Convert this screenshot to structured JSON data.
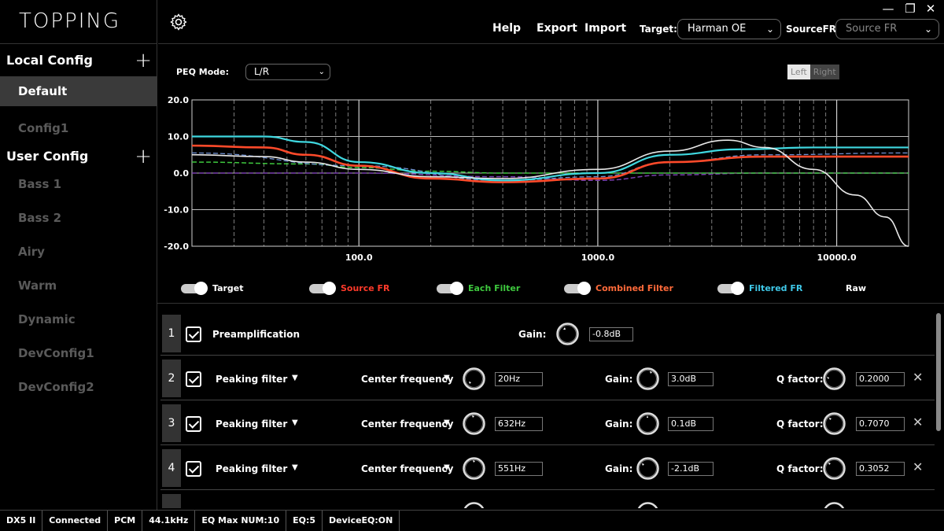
{
  "app": {
    "logo": "TOPPING"
  },
  "topbar": {
    "menu": [
      "Help",
      "Export",
      "Import"
    ],
    "target_label": "Target:",
    "target_value": "Harman OE",
    "sourcefr_label": "SourceFR:",
    "sourcefr_placeholder": "Source FR",
    "win_minimize": "—",
    "win_restore": "❐",
    "win_close": "✕"
  },
  "sidebar": {
    "local_config": "Local Config",
    "local_items": [
      "Default",
      "Config1"
    ],
    "user_config": "User Config",
    "user_items": [
      "Bass 1",
      "Bass 2",
      "Airy",
      "Warm",
      "Dynamic",
      "DevConfig1",
      "DevConfig2"
    ],
    "plus": "+"
  },
  "peq": {
    "mode_label": "PEQ Mode:",
    "mode_value": "L/R",
    "left": "Left",
    "right": "Right"
  },
  "chart_data": {
    "type": "line",
    "xscale": "log",
    "xlim": [
      20,
      20000
    ],
    "ylim": [
      -20,
      20
    ],
    "grid": true,
    "y_ticks": [
      "20.0",
      "10.0",
      "0.0",
      "-10.0",
      "-20.0"
    ],
    "x_ticks": [
      "100.0",
      "1000.0",
      "10000.0"
    ],
    "series": [
      {
        "name": "Target",
        "color": "#e8e8e8",
        "x": [
          20,
          40,
          60,
          100,
          200,
          400,
          1000,
          2000,
          3500,
          5000,
          8000,
          12000,
          16000,
          20000
        ],
        "y": [
          5,
          4.5,
          3,
          1,
          -1,
          -1.5,
          1,
          6,
          9,
          7,
          1,
          -6,
          -12,
          -20
        ]
      },
      {
        "name": "Source FR",
        "color": "#ff4a2a",
        "x": [
          20,
          40,
          60,
          100,
          200,
          400,
          1000,
          2000,
          5000,
          10000,
          20000
        ],
        "y": [
          7.5,
          7,
          5,
          2,
          -1.5,
          -2.5,
          -1.5,
          3,
          4.5,
          4.5,
          4.5
        ]
      },
      {
        "name": "Each Filter",
        "color": "#3ec83e",
        "x": [
          20,
          60,
          100,
          200,
          400,
          1000,
          20000
        ],
        "y": [
          3,
          2.5,
          1.5,
          0.5,
          0,
          0,
          0
        ]
      },
      {
        "name": "Combined Filter",
        "color": "#7a3fb0",
        "x": [
          20,
          100,
          400,
          1000,
          2000,
          5000,
          20000
        ],
        "y": [
          0,
          0,
          -1,
          -2,
          -0.5,
          0,
          0
        ]
      },
      {
        "name": "Filtered FR",
        "color": "#3fd8e0",
        "x": [
          20,
          40,
          60,
          100,
          200,
          400,
          1000,
          2000,
          4000,
          8000,
          20000
        ],
        "y": [
          10,
          10,
          8.5,
          3,
          0,
          -2,
          0,
          5,
          6.5,
          7,
          7
        ]
      },
      {
        "name": "Raw",
        "color": "#6d8fd0",
        "x": [
          20,
          100,
          400,
          1000,
          2000,
          5000,
          20000
        ],
        "y": [
          5.5,
          2,
          -2,
          -1,
          3,
          5,
          5.5
        ]
      }
    ]
  },
  "legend": [
    {
      "label": "Target",
      "color": "#ffffff"
    },
    {
      "label": "Source FR",
      "color": "#ff3a2a"
    },
    {
      "label": "Each Filter",
      "color": "#3ec83e"
    },
    {
      "label": "Combined Filter",
      "color": "#ff6a3a"
    },
    {
      "label": "Filtered FR",
      "color": "#3fc8e8"
    },
    {
      "label": "Raw",
      "color": "#ffffff"
    }
  ],
  "preamp": {
    "index": "1",
    "label": "Preamplification",
    "gain_label": "Gain:",
    "gain_value": "-0.8dB"
  },
  "filters": [
    {
      "index": "2",
      "type": "Peaking filter",
      "freq_label": "Center frequency",
      "freq": "20Hz",
      "gain_label": "Gain:",
      "gain": "3.0dB",
      "q_label": "Q factor:",
      "q": "0.2000"
    },
    {
      "index": "3",
      "type": "Peaking filter",
      "freq_label": "Center frequency",
      "freq": "632Hz",
      "gain_label": "Gain:",
      "gain": "0.1dB",
      "q_label": "Q factor:",
      "q": "0.7070"
    },
    {
      "index": "4",
      "type": "Peaking filter",
      "freq_label": "Center frequency",
      "freq": "551Hz",
      "gain_label": "Gain:",
      "gain": "-2.1dB",
      "q_label": "Q factor:",
      "q": "0.3052"
    }
  ],
  "status": [
    "DX5 II",
    "Connected",
    "PCM",
    "44.1kHz",
    "EQ Max NUM:10",
    "EQ:5",
    "DeviceEQ:ON"
  ]
}
